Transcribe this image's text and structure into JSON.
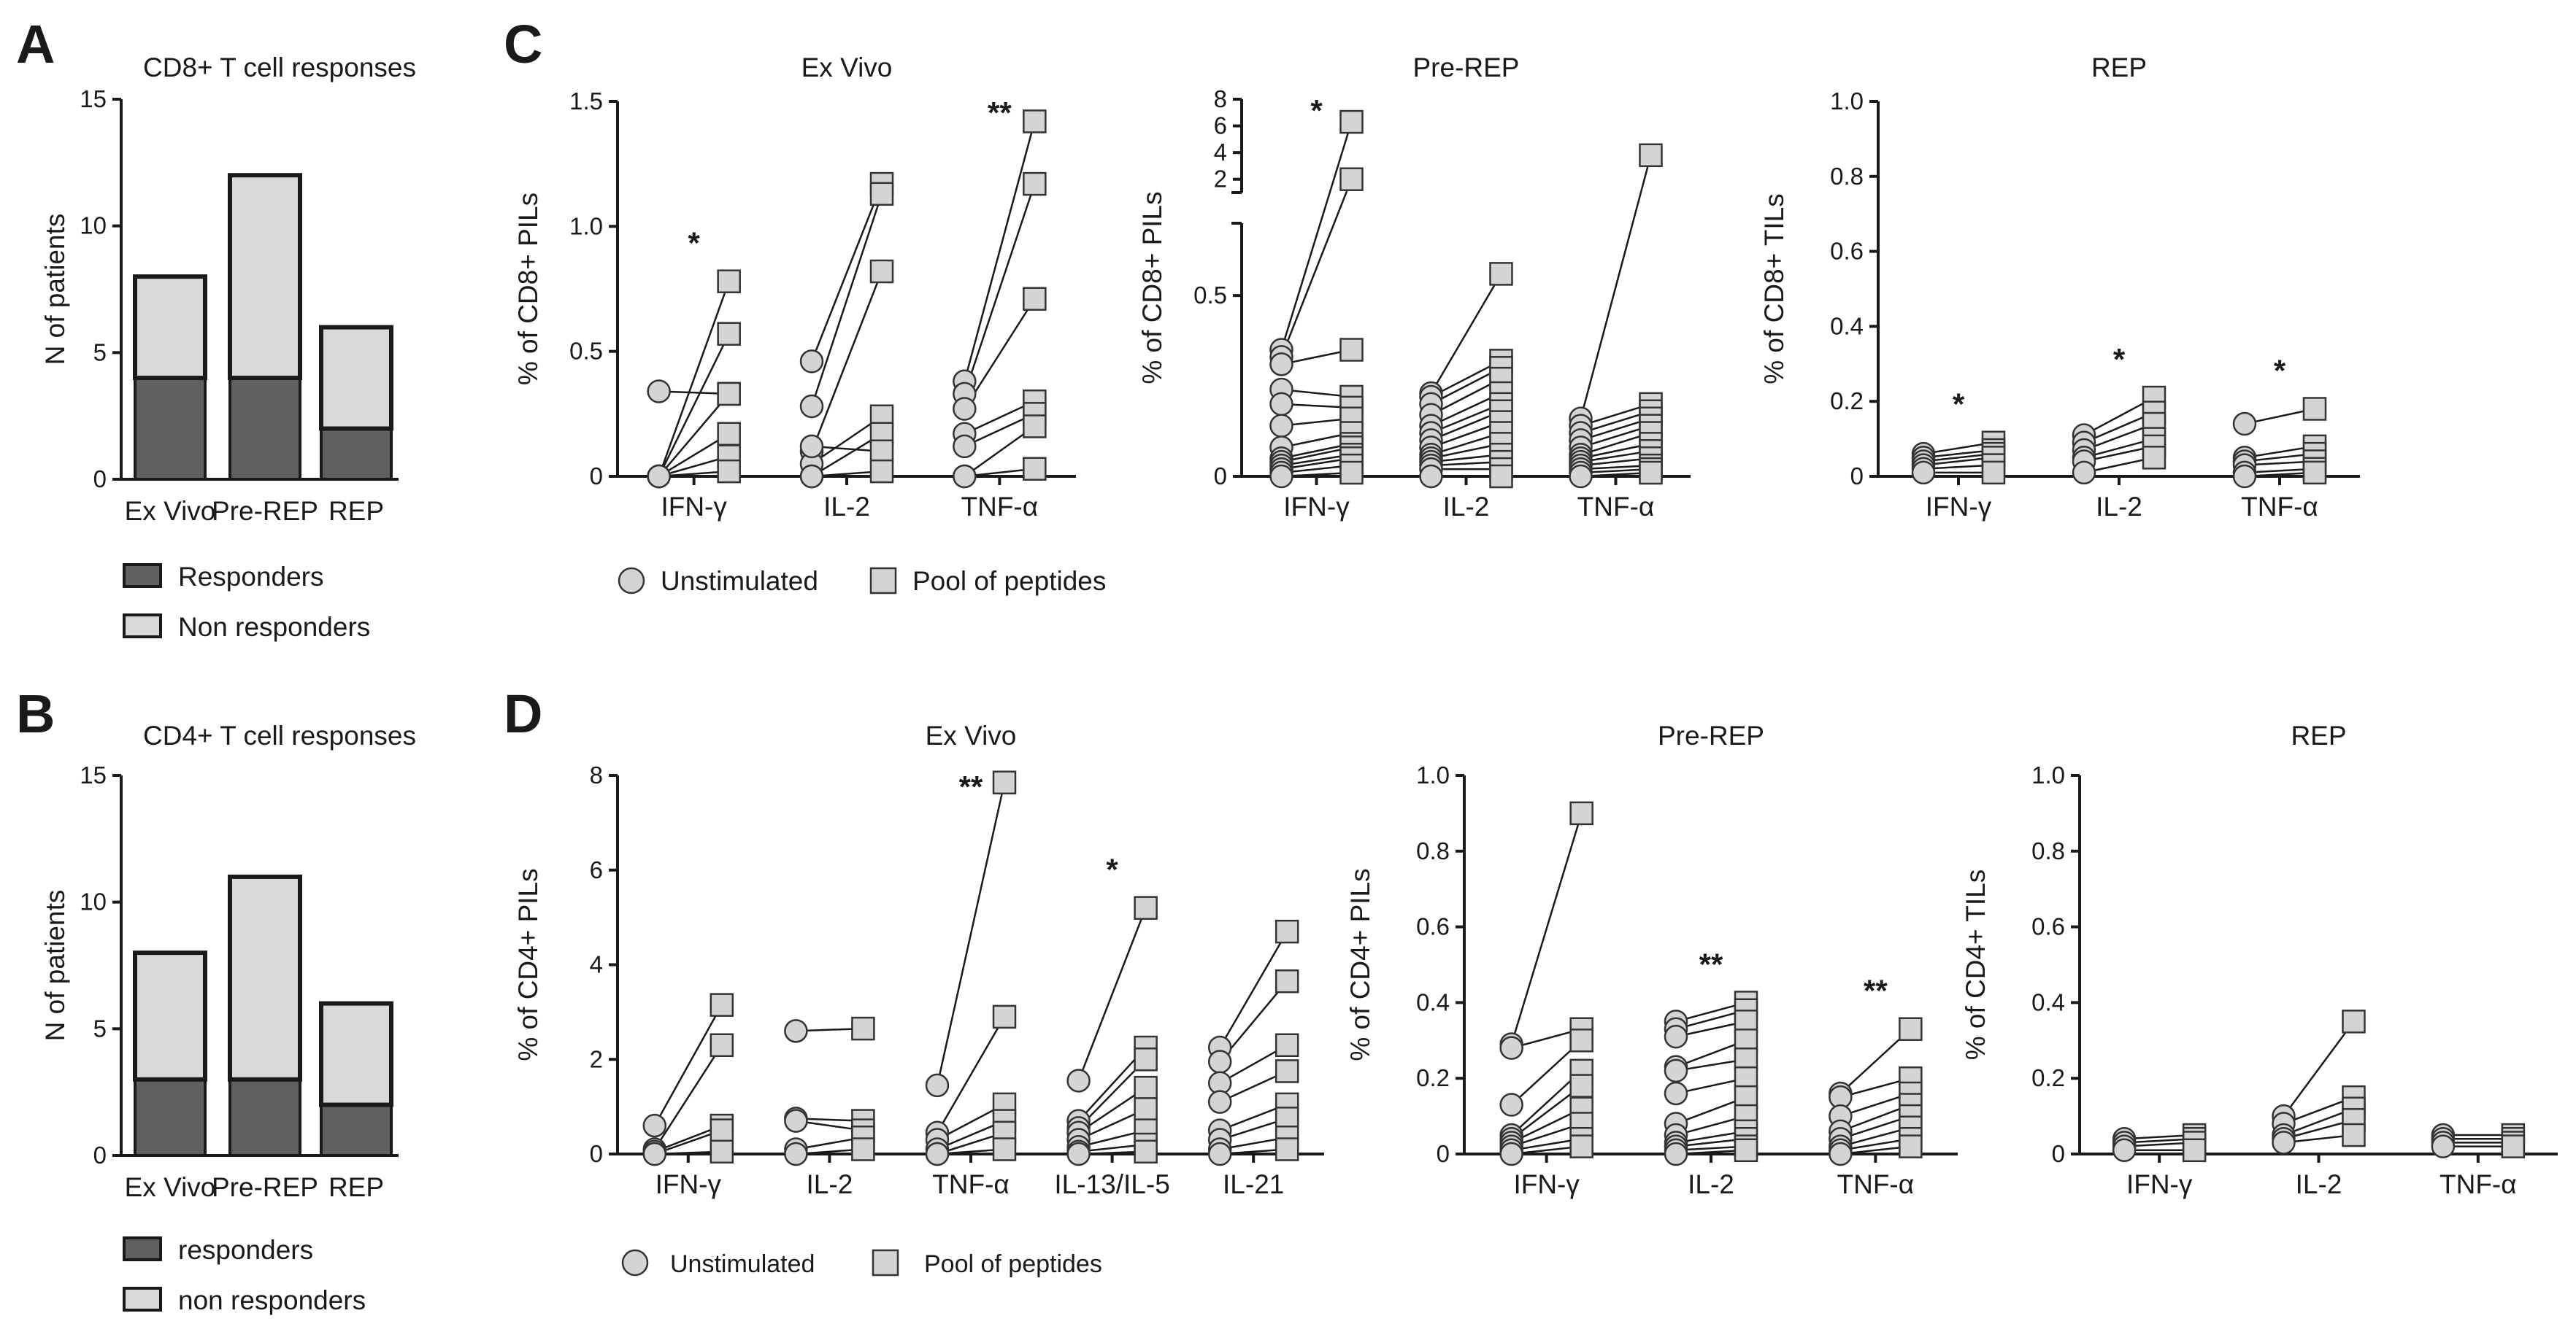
{
  "colors": {
    "responder": "#606060",
    "nonresponder": "#d9d9d9",
    "marker": "#d4d4d4",
    "ink": "#1a1a1a"
  },
  "panel_labels": {
    "A": "A",
    "B": "B",
    "C": "C",
    "D": "D"
  },
  "legends": {
    "A": {
      "responders": "Responders",
      "nonresponders": "Non responders"
    },
    "B": {
      "responders": "responders",
      "nonresponders": "non responders"
    },
    "C": {
      "unstim": "Unstimulated",
      "pool": "Pool of peptides"
    },
    "D": {
      "unstim": "Unstimulated",
      "pool": "Pool of peptides"
    }
  },
  "chart_data": [
    {
      "id": "A",
      "type": "bar",
      "stacked": true,
      "title": "CD8+ T cell responses",
      "ylabel": "N of patients",
      "xlabel": "",
      "ylim": [
        0,
        15
      ],
      "yticks": [
        0,
        5,
        10,
        15
      ],
      "categories": [
        "Ex Vivo",
        "Pre-REP",
        "REP"
      ],
      "series": [
        {
          "name": "Responders",
          "values": [
            4,
            4,
            2
          ]
        },
        {
          "name": "Non responders",
          "values": [
            4,
            8,
            4
          ]
        }
      ]
    },
    {
      "id": "B",
      "type": "bar",
      "stacked": true,
      "title": "CD4+ T cell responses",
      "ylabel": "N of patients",
      "xlabel": "",
      "ylim": [
        0,
        15
      ],
      "yticks": [
        0,
        5,
        10,
        15
      ],
      "categories": [
        "Ex Vivo",
        "Pre-REP",
        "REP"
      ],
      "series": [
        {
          "name": "responders",
          "values": [
            3,
            3,
            2
          ]
        },
        {
          "name": "non responders",
          "values": [
            5,
            8,
            4
          ]
        }
      ]
    },
    {
      "id": "C1",
      "type": "scatter",
      "paired": true,
      "title": "Ex Vivo",
      "ylabel": "% of CD8+ PILs",
      "ylim": [
        0,
        1.5
      ],
      "yticks": [
        "0",
        "0.5",
        "1.0",
        "1.5"
      ],
      "categories": [
        "IFN-γ",
        "IL-2",
        "TNF-α"
      ],
      "significance": [
        "*",
        "",
        "**"
      ],
      "pairs": [
        [
          [
            0,
            0.78
          ],
          [
            0,
            0.57
          ],
          [
            0,
            0.33
          ],
          [
            0,
            0.17
          ],
          [
            0,
            0.08
          ],
          [
            0,
            0.02
          ],
          [
            0.34,
            0.33
          ]
        ],
        [
          [
            0.46,
            1.17
          ],
          [
            0.28,
            1.13
          ],
          [
            0.1,
            0.82
          ],
          [
            0.05,
            0.24
          ],
          [
            0,
            0.17
          ],
          [
            0.12,
            0.1
          ],
          [
            0,
            0.02
          ]
        ],
        [
          [
            0.38,
            1.42
          ],
          [
            0.33,
            1.17
          ],
          [
            0.27,
            0.71
          ],
          [
            0.17,
            0.3
          ],
          [
            0.12,
            0.25
          ],
          [
            0,
            0.2
          ],
          [
            0,
            0.03
          ]
        ]
      ]
    },
    {
      "id": "C2",
      "type": "scatter",
      "paired": true,
      "broken_axis": true,
      "title": "Pre-REP",
      "ylabel": "% of CD8+ PILs",
      "ylim_lower": [
        0,
        0.7
      ],
      "ylim_upper": [
        1,
        8
      ],
      "yticks_lower": [
        "0",
        "0.5"
      ],
      "yticks_upper": [
        "2",
        "4",
        "6",
        "8"
      ],
      "categories": [
        "IFN-γ",
        "IL-2",
        "TNF-α"
      ],
      "significance": [
        "*",
        "",
        ""
      ],
      "pairs": [
        [
          [
            0.35,
            6.3
          ],
          [
            0.33,
            2
          ],
          [
            0.31,
            0.35
          ],
          [
            0.24,
            0.22
          ],
          [
            0.2,
            0.19
          ],
          [
            0.14,
            0.16
          ],
          [
            0.08,
            0.12
          ],
          [
            0.05,
            0.09
          ],
          [
            0.04,
            0.08
          ],
          [
            0.03,
            0.06
          ],
          [
            0.02,
            0.05
          ],
          [
            0.01,
            0.03
          ],
          [
            0,
            0.01
          ]
        ],
        [
          [
            0.23,
            0.56
          ],
          [
            0.22,
            0.32
          ],
          [
            0.2,
            0.3
          ],
          [
            0.17,
            0.27
          ],
          [
            0.14,
            0.23
          ],
          [
            0.12,
            0.2
          ],
          [
            0.1,
            0.18
          ],
          [
            0.08,
            0.15
          ],
          [
            0.06,
            0.12
          ],
          [
            0.05,
            0.09
          ],
          [
            0.04,
            0.06
          ],
          [
            0.03,
            0.04
          ],
          [
            0.02,
            0.02
          ],
          [
            0,
            0
          ]
        ],
        [
          [
            0.16,
            3.8
          ],
          [
            0.14,
            0.2
          ],
          [
            0.12,
            0.18
          ],
          [
            0.1,
            0.16
          ],
          [
            0.08,
            0.14
          ],
          [
            0.06,
            0.12
          ],
          [
            0.05,
            0.09
          ],
          [
            0.04,
            0.07
          ],
          [
            0.03,
            0.05
          ],
          [
            0.02,
            0.03
          ],
          [
            0.01,
            0.02
          ],
          [
            0,
            0.01
          ]
        ]
      ]
    },
    {
      "id": "C3",
      "type": "scatter",
      "paired": true,
      "title": "REP",
      "ylabel": "% of CD8+ TILs",
      "ylim": [
        0,
        1.0
      ],
      "yticks": [
        "0",
        "0.2",
        "0.4",
        "0.6",
        "0.8",
        "1.0"
      ],
      "categories": [
        "IFN-γ",
        "IL-2",
        "TNF-α"
      ],
      "significance": [
        "*",
        "*",
        "*"
      ],
      "pairs": [
        [
          [
            0.06,
            0.09
          ],
          [
            0.05,
            0.07
          ],
          [
            0.04,
            0.06
          ],
          [
            0.03,
            0.05
          ],
          [
            0.02,
            0.03
          ],
          [
            0.01,
            0.01
          ]
        ],
        [
          [
            0.11,
            0.21
          ],
          [
            0.09,
            0.17
          ],
          [
            0.07,
            0.14
          ],
          [
            0.05,
            0.1
          ],
          [
            0.04,
            0.08
          ],
          [
            0.01,
            0.05
          ]
        ],
        [
          [
            0.14,
            0.18
          ],
          [
            0.05,
            0.08
          ],
          [
            0.04,
            0.06
          ],
          [
            0.03,
            0.04
          ],
          [
            0.01,
            0.02
          ],
          [
            0,
            0.01
          ]
        ]
      ]
    },
    {
      "id": "D1",
      "type": "scatter",
      "paired": true,
      "title": "Ex Vivo",
      "ylabel": "% of CD4+ PILs",
      "ylim": [
        0,
        8
      ],
      "yticks": [
        "0",
        "2",
        "4",
        "6",
        "8"
      ],
      "categories": [
        "IFN-γ",
        "IL-2",
        "TNF-α",
        "IL-13/IL-5",
        "IL-21"
      ],
      "significance": [
        "",
        "",
        "**",
        "*",
        ""
      ],
      "pairs": [
        [
          [
            0.6,
            3.15
          ],
          [
            0.1,
            2.3
          ],
          [
            0.05,
            0.6
          ],
          [
            0,
            0.5
          ],
          [
            0,
            0.05
          ]
        ],
        [
          [
            2.6,
            2.65
          ],
          [
            0.75,
            0.7
          ],
          [
            0.7,
            0.5
          ],
          [
            0.1,
            0.35
          ],
          [
            0,
            0.1
          ]
        ],
        [
          [
            1.45,
            7.85
          ],
          [
            0.45,
            2.9
          ],
          [
            0.3,
            1.05
          ],
          [
            0.1,
            0.7
          ],
          [
            0,
            0.45
          ],
          [
            0,
            0.1
          ]
        ],
        [
          [
            1.55,
            5.2
          ],
          [
            0.7,
            2.25
          ],
          [
            0.55,
            2
          ],
          [
            0.45,
            1.4
          ],
          [
            0.3,
            0.95
          ],
          [
            0.15,
            0.5
          ],
          [
            0.05,
            0.2
          ],
          [
            0,
            0.05
          ]
        ],
        [
          [
            2.25,
            4.7
          ],
          [
            1.95,
            3.65
          ],
          [
            1.5,
            2.3
          ],
          [
            1.1,
            1.75
          ],
          [
            0.5,
            1.05
          ],
          [
            0.3,
            0.75
          ],
          [
            0.1,
            0.35
          ],
          [
            0,
            0.1
          ]
        ]
      ]
    },
    {
      "id": "D2",
      "type": "scatter",
      "paired": true,
      "title": "Pre-REP",
      "ylabel": "% of CD4+ PILs",
      "ylim": [
        0,
        1.0
      ],
      "yticks": [
        "0",
        "0.2",
        "0.4",
        "0.6",
        "0.8",
        "1.0"
      ],
      "categories": [
        "IFN-γ",
        "IL-2",
        "TNF-α"
      ],
      "significance": [
        "",
        "**",
        "**"
      ],
      "pairs": [
        [
          [
            0.29,
            0.9
          ],
          [
            0.28,
            0.33
          ],
          [
            0.13,
            0.3
          ],
          [
            0.05,
            0.22
          ],
          [
            0.04,
            0.18
          ],
          [
            0.03,
            0.12
          ],
          [
            0.02,
            0.08
          ],
          [
            0.01,
            0.04
          ],
          [
            0,
            0.02
          ]
        ],
        [
          [
            0.35,
            0.4
          ],
          [
            0.33,
            0.38
          ],
          [
            0.31,
            0.35
          ],
          [
            0.23,
            0.3
          ],
          [
            0.22,
            0.25
          ],
          [
            0.16,
            0.2
          ],
          [
            0.08,
            0.15
          ],
          [
            0.05,
            0.1
          ],
          [
            0.03,
            0.06
          ],
          [
            0.02,
            0.04
          ],
          [
            0.01,
            0.02
          ],
          [
            0,
            0.01
          ]
        ],
        [
          [
            0.16,
            0.33
          ],
          [
            0.15,
            0.2
          ],
          [
            0.1,
            0.16
          ],
          [
            0.06,
            0.13
          ],
          [
            0.04,
            0.1
          ],
          [
            0.02,
            0.07
          ],
          [
            0.01,
            0.04
          ],
          [
            0,
            0.02
          ]
        ]
      ]
    },
    {
      "id": "D3",
      "type": "scatter",
      "paired": true,
      "title": "REP",
      "ylabel": "% of CD4+ TILs",
      "ylim": [
        0,
        1.0
      ],
      "yticks": [
        "0",
        "0.2",
        "0.4",
        "0.6",
        "0.8",
        "1.0"
      ],
      "categories": [
        "IFN-γ",
        "IL-2",
        "TNF-α"
      ],
      "significance": [
        "",
        "",
        ""
      ],
      "pairs": [
        [
          [
            0.04,
            0.05
          ],
          [
            0.03,
            0.04
          ],
          [
            0.02,
            0.03
          ],
          [
            0.01,
            0.01
          ]
        ],
        [
          [
            0.1,
            0.35
          ],
          [
            0.08,
            0.15
          ],
          [
            0.05,
            0.12
          ],
          [
            0.04,
            0.09
          ],
          [
            0.03,
            0.05
          ]
        ],
        [
          [
            0.05,
            0.05
          ],
          [
            0.04,
            0.04
          ],
          [
            0.03,
            0.03
          ],
          [
            0.02,
            0.02
          ]
        ]
      ]
    }
  ]
}
